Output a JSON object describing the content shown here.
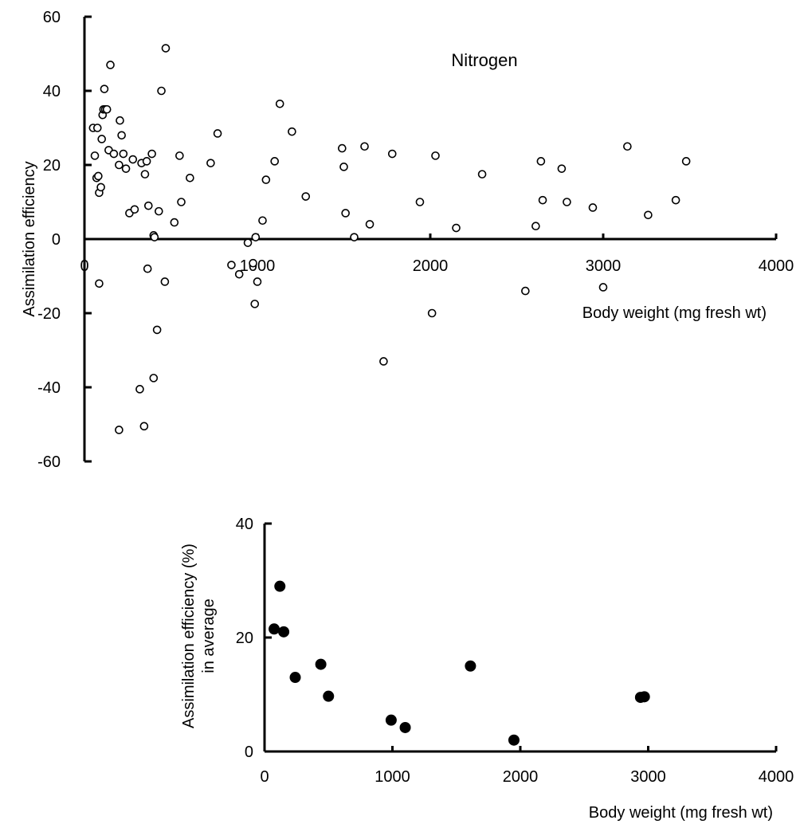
{
  "chart_data": [
    {
      "type": "scatter",
      "title": "Nitrogen",
      "xlabel": "Body weight (mg fresh wt)",
      "ylabel": "Assimilation efficiency",
      "xlim": [
        0,
        4000
      ],
      "ylim": [
        -60,
        60
      ],
      "xticks": [
        0,
        1000,
        2000,
        3000,
        4000
      ],
      "yticks": [
        -60,
        -40,
        -20,
        0,
        20,
        40,
        60
      ],
      "marker": "open-circle",
      "grid": false,
      "series": [
        {
          "points": [
            [
              50,
              30
            ],
            [
              75,
              30
            ],
            [
              60,
              22.5
            ],
            [
              70,
              16.5
            ],
            [
              80,
              17
            ],
            [
              85,
              12.5
            ],
            [
              95,
              14
            ],
            [
              100,
              27
            ],
            [
              105,
              33.5
            ],
            [
              110,
              35
            ],
            [
              115,
              40.5
            ],
            [
              120,
              35
            ],
            [
              130,
              35
            ],
            [
              140,
              24
            ],
            [
              150,
              47
            ],
            [
              170,
              23
            ],
            [
              200,
              20
            ],
            [
              205,
              32
            ],
            [
              215,
              28
            ],
            [
              225,
              23
            ],
            [
              240,
              19
            ],
            [
              260,
              7
            ],
            [
              280,
              21.5
            ],
            [
              290,
              8
            ],
            [
              330,
              20.5
            ],
            [
              350,
              17.5
            ],
            [
              360,
              21
            ],
            [
              370,
              9
            ],
            [
              390,
              23
            ],
            [
              400,
              1
            ],
            [
              405,
              0.5
            ],
            [
              430,
              7.5
            ],
            [
              445,
              40
            ],
            [
              470,
              51.5
            ],
            [
              520,
              4.5
            ],
            [
              550,
              22.5
            ],
            [
              560,
              10
            ],
            [
              610,
              16.5
            ],
            [
              730,
              20.5
            ],
            [
              770,
              28.5
            ],
            [
              85,
              -12
            ],
            [
              365,
              -8
            ],
            [
              465,
              -11.5
            ],
            [
              420,
              -24.5
            ],
            [
              400,
              -37.5
            ],
            [
              320,
              -40.5
            ],
            [
              345,
              -50.5
            ],
            [
              200,
              -51.5
            ],
            [
              850,
              -7
            ],
            [
              895,
              -9.5
            ],
            [
              945,
              -1
            ],
            [
              975,
              -6.5
            ],
            [
              990,
              0.5
            ],
            [
              1000,
              -11.5
            ],
            [
              985,
              -17.5
            ],
            [
              1030,
              5
            ],
            [
              1050,
              16
            ],
            [
              1100,
              21
            ],
            [
              1130,
              36.5
            ],
            [
              1200,
              29
            ],
            [
              1280,
              11.5
            ],
            [
              1490,
              24.5
            ],
            [
              1500,
              19.5
            ],
            [
              1510,
              7
            ],
            [
              1560,
              0.5
            ],
            [
              1620,
              25
            ],
            [
              1650,
              4
            ],
            [
              1780,
              23
            ],
            [
              1940,
              10
            ],
            [
              2030,
              22.5
            ],
            [
              2150,
              3
            ],
            [
              2300,
              17.5
            ],
            [
              1730,
              -33
            ],
            [
              2010,
              -20
            ],
            [
              2550,
              -14
            ],
            [
              2610,
              3.5
            ],
            [
              2640,
              21
            ],
            [
              2650,
              10.5
            ],
            [
              2790,
              10
            ],
            [
              2760,
              19
            ],
            [
              2940,
              8.5
            ],
            [
              3000,
              -13
            ],
            [
              3140,
              25
            ],
            [
              3260,
              6.5
            ],
            [
              3420,
              10.5
            ],
            [
              3480,
              21
            ]
          ]
        }
      ]
    },
    {
      "type": "scatter",
      "title": "",
      "xlabel": "Body weight (mg fresh wt)",
      "ylabel": "Assimilation efficiency (%)",
      "ylabel_line2": "in average",
      "xlim": [
        0,
        4000
      ],
      "ylim": [
        0,
        40
      ],
      "xticks": [
        0,
        1000,
        2000,
        3000,
        4000
      ],
      "yticks": [
        0,
        20,
        40
      ],
      "marker": "filled-circle",
      "grid": false,
      "series": [
        {
          "points": [
            [
              75,
              21.5
            ],
            [
              120,
              29
            ],
            [
              150,
              21
            ],
            [
              240,
              13
            ],
            [
              440,
              15.3
            ],
            [
              500,
              9.7
            ],
            [
              990,
              5.5
            ],
            [
              1100,
              4.2
            ],
            [
              1610,
              15
            ],
            [
              1950,
              2
            ],
            [
              2940,
              9.5
            ],
            [
              2970,
              9.6
            ]
          ]
        }
      ]
    }
  ]
}
